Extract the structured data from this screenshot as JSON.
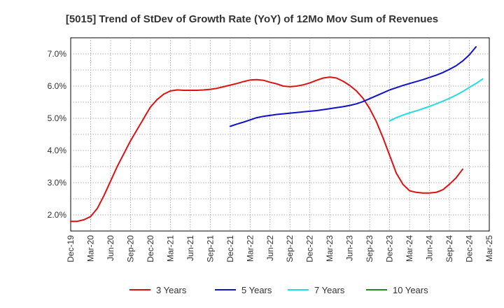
{
  "chart_data": {
    "type": "line",
    "title": "[5015]  Trend of StDev of Growth Rate (YoY) of 12Mo Mov Sum of Revenues",
    "xlabel": "",
    "ylabel": "",
    "x_tick_labels": [
      "Dec-19",
      "Mar-20",
      "Jun-20",
      "Sep-20",
      "Dec-20",
      "Mar-21",
      "Jun-21",
      "Sep-21",
      "Dec-21",
      "Mar-22",
      "Jun-22",
      "Sep-22",
      "Dec-22",
      "Mar-23",
      "Jun-23",
      "Sep-23",
      "Dec-23",
      "Mar-24",
      "Jun-24",
      "Sep-24",
      "Dec-24",
      "Mar-25"
    ],
    "y_tick_values": [
      2.0,
      3.0,
      4.0,
      5.0,
      6.0,
      7.0
    ],
    "y_tick_labels": [
      "2.0%",
      "3.0%",
      "4.0%",
      "5.0%",
      "6.0%",
      "7.0%"
    ],
    "ylim": [
      1.5,
      7.5
    ],
    "x_range_months": [
      0,
      63
    ],
    "grid": true,
    "legend_position": "bottom",
    "series": [
      {
        "name": "3 Years",
        "color": "#dd1111",
        "start_month": 0,
        "values": [
          1.8,
          1.8,
          1.85,
          1.95,
          2.2,
          2.6,
          3.05,
          3.5,
          3.9,
          4.3,
          4.65,
          5.0,
          5.35,
          5.58,
          5.75,
          5.85,
          5.88,
          5.87,
          5.87,
          5.87,
          5.88,
          5.9,
          5.93,
          5.98,
          6.03,
          6.08,
          6.14,
          6.19,
          6.2,
          6.18,
          6.12,
          6.07,
          6.0,
          5.98,
          6.0,
          6.04,
          6.1,
          6.18,
          6.25,
          6.28,
          6.25,
          6.15,
          6.02,
          5.85,
          5.62,
          5.3,
          4.9,
          4.4,
          3.85,
          3.3,
          2.95,
          2.75,
          2.7,
          2.68,
          2.68,
          2.7,
          2.78,
          2.95,
          3.15,
          3.42
        ]
      },
      {
        "name": "5 Years",
        "color": "#1111cc",
        "start_month": 24,
        "values": [
          4.75,
          4.82,
          4.88,
          4.95,
          5.02,
          5.06,
          5.09,
          5.12,
          5.14,
          5.16,
          5.18,
          5.2,
          5.22,
          5.24,
          5.27,
          5.3,
          5.33,
          5.36,
          5.4,
          5.45,
          5.52,
          5.61,
          5.7,
          5.79,
          5.88,
          5.95,
          6.02,
          6.08,
          6.14,
          6.2,
          6.27,
          6.34,
          6.42,
          6.52,
          6.63,
          6.78,
          6.97,
          7.22
        ]
      },
      {
        "name": "7 Years",
        "color": "#22dddd",
        "start_month": 48,
        "values": [
          4.92,
          5.02,
          5.1,
          5.17,
          5.23,
          5.3,
          5.37,
          5.45,
          5.53,
          5.62,
          5.72,
          5.83,
          5.96,
          6.08,
          6.22
        ]
      },
      {
        "name": "10 Years",
        "color": "#228822",
        "start_month": null,
        "values": []
      }
    ]
  }
}
